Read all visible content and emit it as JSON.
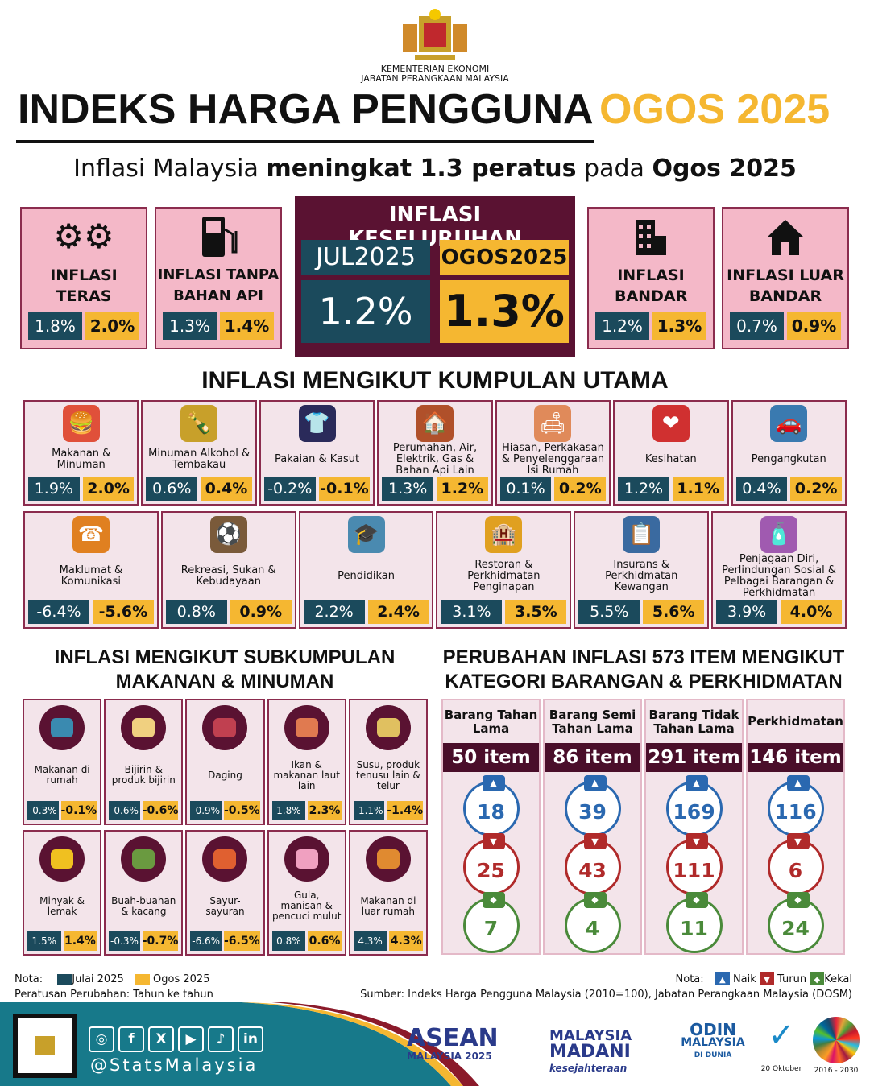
{
  "header": {
    "agency_line1": "KEMENTERIAN EKONOMI",
    "agency_line2": "JABATAN PERANGKAAN MALAYSIA",
    "title": "INDEKS HARGA PENGGUNA",
    "title_period": "OGOS 2025",
    "subtitle_pre": "Inflasi Malaysia ",
    "subtitle_bold": "meningkat 1.3 peratus",
    "subtitle_mid": " pada ",
    "subtitle_end": "Ogos 2025"
  },
  "overall": {
    "title": "INFLASI KESELURUHAN",
    "prev_label": "JUL2025",
    "curr_label": "OGOS2025",
    "prev": "1.2%",
    "curr": "1.3%"
  },
  "top_cards": [
    {
      "label": "INFLASI TERAS",
      "icon": "gears-icon",
      "prev": "1.8%",
      "curr": "2.0%"
    },
    {
      "label": "INFLASI TANPA BAHAN API",
      "icon": "fuel-pump-icon",
      "prev": "1.3%",
      "curr": "1.4%"
    },
    {
      "label": "INFLASI BANDAR",
      "icon": "building-icon",
      "prev": "1.2%",
      "curr": "1.3%"
    },
    {
      "label": "INFLASI LUAR BANDAR",
      "icon": "house-icon",
      "prev": "0.7%",
      "curr": "0.9%"
    }
  ],
  "main_title": "INFLASI MENGIKUT KUMPULAN UTAMA",
  "main_groups": [
    {
      "label": "Makanan & Minuman",
      "prev": "1.9%",
      "curr": "2.0%"
    },
    {
      "label": "Minuman Alkohol & Tembakau",
      "prev": "0.6%",
      "curr": "0.4%"
    },
    {
      "label": "Pakaian & Kasut",
      "prev": "-0.2%",
      "curr": "-0.1%"
    },
    {
      "label": "Perumahan, Air, Elektrik, Gas & Bahan Api Lain",
      "prev": "1.3%",
      "curr": "1.2%"
    },
    {
      "label": "Hiasan, Perkakasan & Penyelenggaraan Isi Rumah",
      "prev": "0.1%",
      "curr": "0.2%"
    },
    {
      "label": "Kesihatan",
      "prev": "1.2%",
      "curr": "1.1%"
    },
    {
      "label": "Pengangkutan",
      "prev": "0.4%",
      "curr": "0.2%"
    },
    {
      "label": "Maklumat & Komunikasi",
      "prev": "-6.4%",
      "curr": "-5.6%"
    },
    {
      "label": "Rekreasi, Sukan & Kebudayaan",
      "prev": "0.8%",
      "curr": "0.9%"
    },
    {
      "label": "Pendidikan",
      "prev": "2.2%",
      "curr": "2.4%"
    },
    {
      "label": "Restoran & Perkhidmatan Penginapan",
      "prev": "3.1%",
      "curr": "3.5%"
    },
    {
      "label": "Insurans & Perkhidmatan Kewangan",
      "prev": "5.5%",
      "curr": "5.6%"
    },
    {
      "label": "Penjagaan Diri, Perlindungan Sosial & Pelbagai Barangan & Perkhidmatan",
      "prev": "3.9%",
      "curr": "4.0%"
    }
  ],
  "sub_title": "INFLASI MENGIKUT SUBKUMPULAN MAKANAN & MINUMAN",
  "sub_groups": [
    {
      "label": "Makanan di rumah",
      "prev": "-0.3%",
      "curr": "-0.1%"
    },
    {
      "label": "Bijirin & produk bijirin",
      "prev": "-0.6%",
      "curr": "-0.6%"
    },
    {
      "label": "Daging",
      "prev": "-0.9%",
      "curr": "-0.5%"
    },
    {
      "label": "Ikan & makanan laut lain",
      "prev": "1.8%",
      "curr": "2.3%"
    },
    {
      "label": "Susu, produk tenusu lain & telur",
      "prev": "-1.1%",
      "curr": "-1.4%"
    },
    {
      "label": "Minyak & lemak",
      "prev": "1.5%",
      "curr": "1.4%"
    },
    {
      "label": "Buah-buahan & kacang",
      "prev": "-0.3%",
      "curr": "-0.7%"
    },
    {
      "label": "Sayur-sayuran",
      "prev": "-6.6%",
      "curr": "-6.5%"
    },
    {
      "label": "Gula, manisan & pencuci mulut",
      "prev": "0.8%",
      "curr": "0.6%"
    },
    {
      "label": "Makanan di luar rumah",
      "prev": "4.3%",
      "curr": "4.3%"
    }
  ],
  "items_title": "PERUBAHAN INFLASI 573 ITEM MENGIKUT KATEGORI BARANGAN & PERKHIDMATAN",
  "items": [
    {
      "label": "Barang Tahan Lama",
      "count": "50 item",
      "naik": "18",
      "turun": "25",
      "kekal": "7"
    },
    {
      "label": "Barang Semi Tahan Lama",
      "count": "86 item",
      "naik": "39",
      "turun": "43",
      "kekal": "4"
    },
    {
      "label": "Barang Tidak Tahan Lama",
      "count": "291 item",
      "naik": "169",
      "turun": "111",
      "kekal": "11"
    },
    {
      "label": "Perkhidmatan",
      "count": "146 item",
      "naik": "116",
      "turun": "6",
      "kekal": "24"
    }
  ],
  "legend": {
    "nota": "Nota:",
    "jul": "Julai 2025",
    "ogos": "Ogos 2025",
    "basis": "Peratusan Perubahan: Tahun ke tahun",
    "nota2": "Nota:",
    "naik": "Naik",
    "turun": "Turun",
    "kekal": "Kekal",
    "source": "Sumber: Indeks Harga Pengguna Malaysia (2010=100), Jabatan Perangkaan Malaysia (DOSM)"
  },
  "footer": {
    "handle": "@StatsMalaysia",
    "social": [
      "instagram-icon",
      "facebook-icon",
      "x-icon",
      "youtube-icon",
      "tiktok-icon",
      "linkedin-icon"
    ],
    "logos": {
      "asean": "ASEAN",
      "asean_sub": "MALAYSIA 2025",
      "madani1": "MALAYSIA",
      "madani2": "MADANI",
      "madani3": "kesejahteraan",
      "odin1": "ODIN",
      "odin2": "MALAYSIA",
      "odin3": "DI DUNIA",
      "stat_day": "20 Oktober",
      "sdg": "2016 - 2030"
    }
  },
  "colors": {
    "teal": "#1b4a5c",
    "yellow": "#f5b731",
    "maroon": "#5a1232",
    "pink": "#f4b8c8",
    "naik": "#2a68b0",
    "turun": "#b02a2a",
    "kekal": "#4a8a3a"
  }
}
